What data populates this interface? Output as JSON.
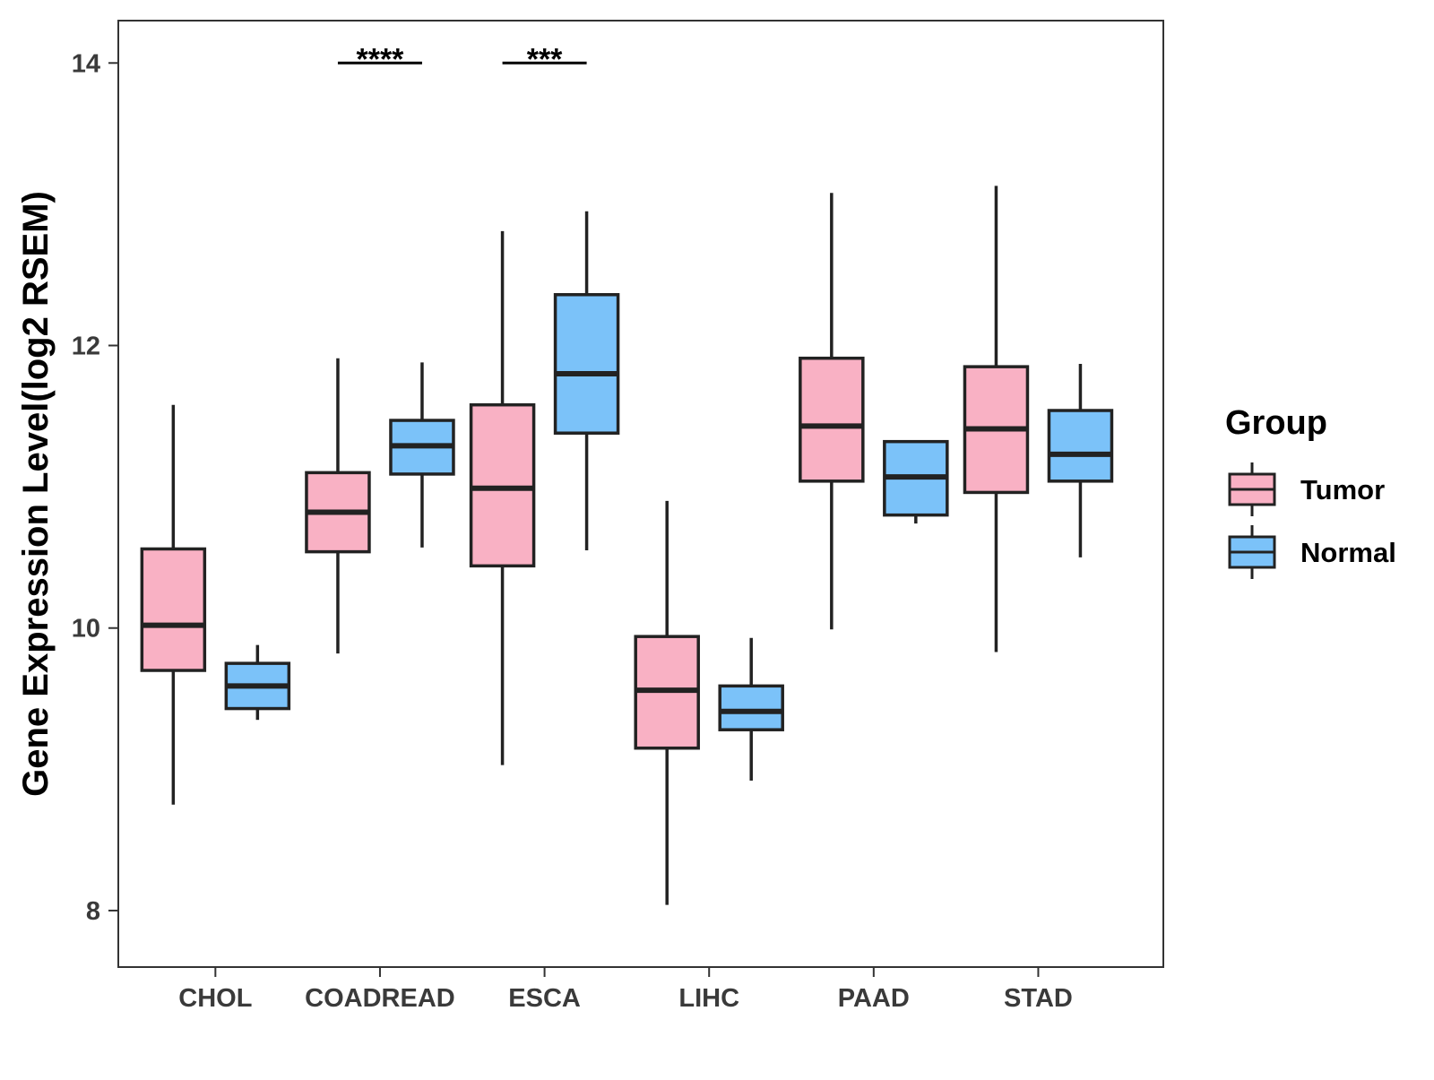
{
  "chart_data": {
    "type": "boxplot",
    "title": "",
    "xlabel": "",
    "ylabel": "Gene Expression Level(log2 RSEM)",
    "ylim": [
      7.6,
      14.3
    ],
    "yticks": [
      8,
      10,
      12,
      14
    ],
    "categories": [
      "CHOL",
      "COADREAD",
      "ESCA",
      "LIHC",
      "PAAD",
      "STAD"
    ],
    "legend": {
      "title": "Group",
      "position": "right"
    },
    "series": [
      {
        "name": "Tumor",
        "color": "#F9B1C4",
        "boxes": [
          {
            "min": 8.75,
            "q1": 9.7,
            "median": 10.02,
            "q3": 10.56,
            "max": 11.58
          },
          {
            "min": 9.82,
            "q1": 10.54,
            "median": 10.82,
            "q3": 11.1,
            "max": 11.91
          },
          {
            "min": 9.03,
            "q1": 10.44,
            "median": 10.99,
            "q3": 11.58,
            "max": 12.81
          },
          {
            "min": 8.04,
            "q1": 9.15,
            "median": 9.56,
            "q3": 9.94,
            "max": 10.9
          },
          {
            "min": 9.99,
            "q1": 11.04,
            "median": 11.43,
            "q3": 11.91,
            "max": 13.08
          },
          {
            "min": 9.83,
            "q1": 10.96,
            "median": 11.41,
            "q3": 11.85,
            "max": 13.13
          }
        ]
      },
      {
        "name": "Normal",
        "color": "#7BC2F9",
        "boxes": [
          {
            "min": 9.35,
            "q1": 9.43,
            "median": 9.59,
            "q3": 9.75,
            "max": 9.88
          },
          {
            "min": 10.57,
            "q1": 11.09,
            "median": 11.29,
            "q3": 11.47,
            "max": 11.88
          },
          {
            "min": 10.55,
            "q1": 11.38,
            "median": 11.8,
            "q3": 12.36,
            "max": 12.95
          },
          {
            "min": 8.92,
            "q1": 9.28,
            "median": 9.41,
            "q3": 9.59,
            "max": 9.93
          },
          {
            "min": 10.74,
            "q1": 10.8,
            "median": 11.07,
            "q3": 11.32,
            "max": 11.32
          },
          {
            "min": 10.5,
            "q1": 11.04,
            "median": 11.23,
            "q3": 11.54,
            "max": 11.87
          }
        ]
      }
    ],
    "annotations": [
      {
        "category": "COADREAD",
        "label": "****",
        "y": 14.0
      },
      {
        "category": "ESCA",
        "label": "***",
        "y": 14.0
      }
    ]
  }
}
